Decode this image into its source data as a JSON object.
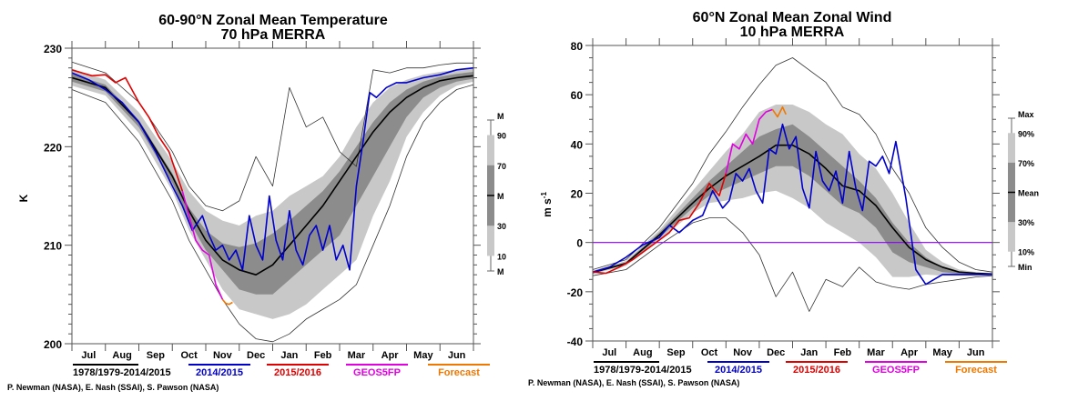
{
  "chart_data": [
    {
      "type": "line",
      "title": "60-90°N Zonal Mean Temperature",
      "subtitle": "70 hPa   MERRA",
      "xlabel": "",
      "ylabel": "K",
      "ylim": [
        200,
        230
      ],
      "yticks": [
        200,
        210,
        220,
        230
      ],
      "x_tick_labels": [
        "Jul",
        "Aug",
        "Sep",
        "Oct",
        "Nov",
        "Dec",
        "Jan",
        "Feb",
        "Mar",
        "Apr",
        "May",
        "Jun"
      ],
      "x_units": "month index (0 = start of Jul, 12 = end of Jun)",
      "xlim": [
        0,
        12
      ],
      "grid": false,
      "bands": {
        "x": [
          0,
          1,
          2,
          3,
          3.5,
          4,
          4.5,
          5,
          5.5,
          6,
          6.5,
          7,
          7.5,
          8,
          8.5,
          9,
          9.5,
          10,
          10.5,
          11,
          11.5,
          12
        ],
        "max": [
          228.6,
          227.5,
          224.5,
          219.5,
          216,
          214,
          213.5,
          214.5,
          219,
          216,
          226,
          222,
          223,
          219.5,
          218,
          227.8,
          227.5,
          228,
          228,
          228.3,
          228.5,
          228.5
        ],
        "p90": [
          227.9,
          226.8,
          223.5,
          218.5,
          215.5,
          213.5,
          212.5,
          212,
          213,
          213.5,
          215,
          216,
          217,
          219,
          222,
          224.5,
          226,
          226.8,
          227.3,
          227.6,
          227.8,
          228
        ],
        "p70": [
          227.4,
          226.3,
          222.7,
          217.3,
          213.8,
          211.5,
          210.2,
          209.8,
          210.2,
          211.2,
          212.5,
          214,
          215.5,
          217.5,
          220,
          222.5,
          224.5,
          225.8,
          226.6,
          227.1,
          227.4,
          227.6
        ],
        "mean": [
          227.0,
          226.0,
          222.5,
          217.0,
          213.5,
          210.5,
          208.5,
          207.5,
          207.0,
          208.0,
          210.0,
          212.0,
          214.0,
          216.5,
          219.0,
          221.5,
          223.5,
          225.0,
          226.0,
          226.7,
          227.0,
          227.2
        ],
        "p30": [
          226.6,
          225.6,
          222.0,
          216.3,
          212.5,
          209.5,
          207.5,
          205.5,
          205.0,
          205.0,
          206.5,
          208.0,
          209.5,
          211.0,
          214,
          217,
          220,
          223,
          225,
          226,
          226.6,
          226.9
        ],
        "p10": [
          226.2,
          225.2,
          221.4,
          215.5,
          211.5,
          208.5,
          205.5,
          203.5,
          203.0,
          202.5,
          203.0,
          204.0,
          205.5,
          207.0,
          208.5,
          213,
          216.5,
          221,
          223.5,
          225.2,
          226.2,
          226.6
        ],
        "min": [
          225.8,
          224.5,
          220.5,
          214.5,
          210.5,
          207.5,
          204.5,
          202.0,
          200.5,
          200.2,
          201.0,
          202.5,
          203.5,
          204.5,
          206,
          210,
          214,
          219,
          222.5,
          224.5,
          225.8,
          226.3
        ]
      },
      "series": [
        {
          "name": "1978/1979-2014/2015",
          "color": "#000000",
          "role": "mean"
        },
        {
          "name": "2014/2015",
          "color": "#0000cc",
          "x": [
            0,
            0.5,
            1,
            1.5,
            2,
            2.5,
            3,
            3.3,
            3.6,
            3.9,
            4.1,
            4.3,
            4.5,
            4.7,
            4.9,
            5.1,
            5.3,
            5.5,
            5.7,
            5.9,
            6.1,
            6.3,
            6.5,
            6.7,
            6.9,
            7.1,
            7.3,
            7.5,
            7.7,
            7.9,
            8.1,
            8.3,
            8.5,
            8.7,
            8.9,
            9.1,
            9.4,
            9.7,
            10,
            10.5,
            11,
            11.5,
            12
          ],
          "y": [
            227.5,
            226.8,
            225.8,
            224.5,
            222.5,
            219.5,
            216,
            214,
            211.5,
            213,
            211,
            209.5,
            210,
            208.5,
            209.5,
            207.5,
            213,
            210,
            208.5,
            215,
            210.5,
            208.5,
            213.5,
            209.5,
            208,
            211,
            212,
            209.5,
            212,
            208.5,
            210,
            207.5,
            216,
            220.5,
            225.5,
            225,
            226,
            226.5,
            226.5,
            227,
            227.3,
            227.8,
            228
          ]
        },
        {
          "name": "2015/2016",
          "color": "#e00000",
          "x": [
            0,
            0.3,
            0.6,
            1,
            1.3,
            1.6,
            2,
            2.3,
            2.6,
            2.9,
            3.1,
            3.3
          ],
          "y": [
            227.8,
            227.5,
            227.2,
            227.3,
            226.5,
            227,
            224.5,
            223,
            221,
            219.5,
            217.5,
            215.5
          ]
        },
        {
          "name": "GEOS5FP",
          "color": "#e000e0",
          "x": [
            3.3,
            3.5,
            3.7,
            3.9,
            4.1,
            4.3,
            4.5
          ],
          "y": [
            215.5,
            213,
            210.5,
            209.5,
            209,
            206,
            204.5
          ]
        },
        {
          "name": "Forecast",
          "color": "#f07800",
          "x": [
            4.5,
            4.6,
            4.7,
            4.8
          ],
          "y": [
            204.5,
            204.1,
            204.0,
            204.2
          ]
        }
      ],
      "legend": {
        "placement": "bottom",
        "entries": [
          {
            "label": "1978/1979-2014/2015",
            "color": "#000000"
          },
          {
            "label": "2014/2015",
            "color": "#0000cc"
          },
          {
            "label": "2015/2016",
            "color": "#e00000"
          },
          {
            "label": "GEOS5FP",
            "color": "#e000e0"
          },
          {
            "label": "Forecast",
            "color": "#f07800"
          }
        ]
      },
      "key": {
        "placement": "right",
        "labels": [
          "M",
          "90",
          "70",
          "M",
          "30",
          "10",
          "M"
        ]
      },
      "credit": "P. Newman (NASA), E. Nash (SSAI), S. Pawson (NASA)"
    },
    {
      "type": "line",
      "title": "60°N Zonal Mean Zonal Wind",
      "subtitle": "10 hPa   MERRA",
      "xlabel": "",
      "ylabel": "m s",
      "ylabel_sup": "-1",
      "ylim": [
        -40,
        80
      ],
      "yticks": [
        -40,
        -20,
        0,
        20,
        40,
        60,
        80
      ],
      "zero_line_color": "#8800ee",
      "x_tick_labels": [
        "Jul",
        "Aug",
        "Sep",
        "Oct",
        "Nov",
        "Dec",
        "Jan",
        "Feb",
        "Mar",
        "Apr",
        "May",
        "Jun"
      ],
      "x_units": "month index (0 = start of Jul, 12 = end of Jun)",
      "xlim": [
        0,
        12
      ],
      "grid": false,
      "bands": {
        "x": [
          0,
          1,
          2,
          3,
          3.5,
          4,
          4.5,
          5,
          5.5,
          6,
          6.5,
          7,
          7.5,
          8,
          8.5,
          9,
          9.5,
          10,
          10.5,
          11,
          11.5,
          12
        ],
        "max": [
          -11,
          -7,
          6,
          24,
          36,
          45,
          55,
          64,
          72,
          75,
          70,
          65,
          55,
          52,
          44,
          30,
          20,
          6,
          -2,
          -8,
          -11,
          -12
        ],
        "p90": [
          -11.5,
          -7.5,
          5,
          21,
          29,
          37,
          44,
          53,
          56,
          56,
          53,
          48,
          44,
          36,
          30,
          20,
          8,
          -3,
          -8,
          -11,
          -12,
          -12.5
        ],
        "p70": [
          -12,
          -8,
          4,
          18,
          25,
          31,
          37,
          43,
          46,
          48,
          43,
          37,
          31,
          25,
          18,
          8,
          0,
          -6,
          -10,
          -12,
          -12.5,
          -12.8
        ],
        "mean": [
          -12.2,
          -8.5,
          3,
          16,
          22,
          27,
          31,
          35,
          39.5,
          39.5,
          36,
          30,
          23,
          21,
          15,
          6,
          -2,
          -7,
          -10,
          -12,
          -12.5,
          -12.8
        ],
        "p30": [
          -12.5,
          -9,
          2,
          14,
          19,
          22,
          25,
          28,
          31,
          31,
          27,
          21,
          15,
          12,
          6,
          -4,
          -8,
          -10,
          -12,
          -12.8,
          -13,
          -13
        ],
        "p10": [
          -12.8,
          -9.5,
          1,
          12,
          16,
          17,
          18,
          20,
          21,
          18,
          14,
          8,
          4,
          0,
          -6,
          -14,
          -14,
          -13,
          -13.5,
          -13.5,
          -13.5,
          -13.2
        ],
        "min": [
          -13.5,
          -11,
          -1,
          8,
          10,
          10,
          4,
          -5,
          -22,
          -12,
          -28,
          -15,
          -18,
          -10,
          -16,
          -18,
          -19,
          -17,
          -16,
          -15,
          -14,
          -13.5
        ]
      },
      "series": [
        {
          "name": "1978/1979-2014/2015",
          "color": "#000000",
          "role": "mean"
        },
        {
          "name": "2014/2015",
          "color": "#0000cc",
          "x": [
            0,
            0.5,
            1,
            1.5,
            2,
            2.3,
            2.6,
            3,
            3.3,
            3.6,
            3.9,
            4.1,
            4.3,
            4.5,
            4.7,
            4.9,
            5.1,
            5.3,
            5.5,
            5.7,
            5.9,
            6.1,
            6.3,
            6.5,
            6.7,
            6.9,
            7.1,
            7.3,
            7.5,
            7.7,
            7.9,
            8.1,
            8.3,
            8.5,
            8.7,
            8.9,
            9.1,
            9.4,
            9.7,
            10,
            10.5,
            11,
            11.5,
            12
          ],
          "y": [
            -12,
            -10,
            -6,
            -1,
            2,
            7,
            4,
            9,
            11,
            21,
            14,
            17,
            28,
            25,
            30,
            21,
            16,
            38,
            36,
            48,
            38,
            43,
            22,
            14,
            37,
            25,
            21,
            29,
            16,
            37,
            22,
            13,
            33,
            31,
            35,
            28,
            41,
            18,
            -11,
            -17,
            -13,
            -13,
            -13,
            -13
          ]
        },
        {
          "name": "2015/2016",
          "color": "#e00000",
          "x": [
            0,
            0.4,
            0.8,
            1.2,
            1.6,
            2,
            2.3,
            2.6,
            2.9,
            3.2,
            3.5,
            3.8,
            4.0
          ],
          "y": [
            -12,
            -12.5,
            -10,
            -7,
            -3,
            1,
            4,
            9,
            10,
            16,
            24,
            19,
            28
          ]
        },
        {
          "name": "GEOS5FP",
          "color": "#e000e0",
          "x": [
            4.0,
            4.2,
            4.4,
            4.6,
            4.8,
            5.0,
            5.2,
            5.4
          ],
          "y": [
            28,
            40,
            38,
            44,
            40,
            50,
            53,
            54
          ]
        },
        {
          "name": "Forecast",
          "color": "#f07800",
          "x": [
            5.4,
            5.55,
            5.7,
            5.8
          ],
          "y": [
            54,
            51,
            55,
            52
          ]
        }
      ],
      "legend": {
        "placement": "bottom",
        "entries": [
          {
            "label": "1978/1979-2014/2015",
            "color": "#000000"
          },
          {
            "label": "2014/2015",
            "color": "#0000cc"
          },
          {
            "label": "2015/2016",
            "color": "#e00000"
          },
          {
            "label": "GEOS5FP",
            "color": "#e000e0"
          },
          {
            "label": "Forecast",
            "color": "#f07800"
          }
        ]
      },
      "key": {
        "placement": "right",
        "labels": [
          "Max",
          "90%",
          "70%",
          "Mean",
          "30%",
          "10%",
          "Min"
        ]
      },
      "credit": "P. Newman (NASA), E. Nash (SSAI), S. Pawson (NASA)"
    }
  ]
}
